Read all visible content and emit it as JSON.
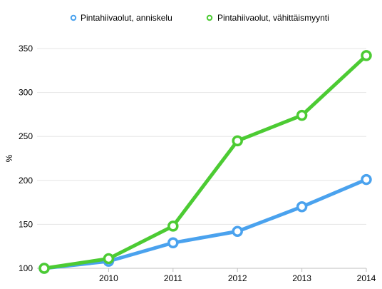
{
  "chart_data": {
    "type": "line",
    "ylabel": "%",
    "xlabel": "",
    "x": [
      2009,
      2010,
      2011,
      2012,
      2013,
      2014
    ],
    "x_tick_labels": [
      "2010",
      "2011",
      "2012",
      "2013",
      "2014"
    ],
    "y_ticks": [
      100,
      150,
      200,
      250,
      300,
      350
    ],
    "ylim": [
      100,
      350
    ],
    "grid": true,
    "legend": "top",
    "series": [
      {
        "name": "Pintahiivaolut, anniskelu",
        "color": "#4aa2ee",
        "values": [
          100,
          108,
          129,
          142,
          170,
          201
        ]
      },
      {
        "name": "Pintahiivaolut, vähittäismyynti",
        "color": "#4ccb33",
        "values": [
          100,
          111,
          148,
          245,
          274,
          342
        ]
      }
    ]
  }
}
